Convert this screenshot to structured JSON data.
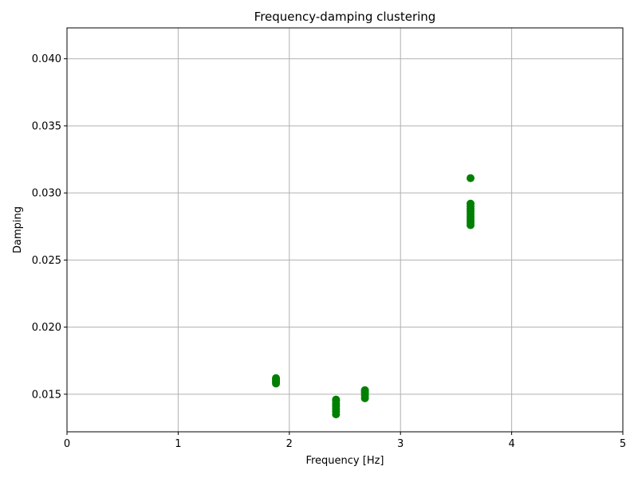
{
  "chart_data": {
    "type": "scatter",
    "title": "Frequency-damping clustering",
    "xlabel": "Frequency [Hz]",
    "ylabel": "Damping",
    "xlim": [
      0,
      5
    ],
    "ylim": [
      0.0122,
      0.0423
    ],
    "xticks": [
      0,
      1,
      2,
      3,
      4,
      5
    ],
    "xtick_labels": [
      "0",
      "1",
      "2",
      "3",
      "4",
      "5"
    ],
    "yticks": [
      0.015,
      0.02,
      0.025,
      0.03,
      0.035,
      0.04
    ],
    "ytick_labels": [
      "0.015",
      "0.020",
      "0.025",
      "0.030",
      "0.035",
      "0.040"
    ],
    "grid": true,
    "marker_color": "#008000",
    "series": [
      {
        "points": [
          [
            1.88,
            0.0162
          ],
          [
            1.88,
            0.0161
          ],
          [
            1.88,
            0.016
          ],
          [
            1.88,
            0.0159
          ],
          [
            1.88,
            0.0158
          ],
          [
            2.42,
            0.0146
          ],
          [
            2.42,
            0.0145
          ],
          [
            2.42,
            0.0143
          ],
          [
            2.42,
            0.0141
          ],
          [
            2.42,
            0.0139
          ],
          [
            2.42,
            0.0137
          ],
          [
            2.42,
            0.0135
          ],
          [
            2.68,
            0.0153
          ],
          [
            2.68,
            0.0152
          ],
          [
            2.68,
            0.0151
          ],
          [
            2.68,
            0.0149
          ],
          [
            2.68,
            0.0147
          ],
          [
            3.63,
            0.0311
          ],
          [
            3.63,
            0.0292
          ],
          [
            3.63,
            0.029
          ],
          [
            3.63,
            0.0288
          ],
          [
            3.63,
            0.0286
          ],
          [
            3.63,
            0.0284
          ],
          [
            3.63,
            0.0282
          ],
          [
            3.63,
            0.028
          ],
          [
            3.63,
            0.0278
          ],
          [
            3.63,
            0.0276
          ]
        ]
      }
    ]
  }
}
